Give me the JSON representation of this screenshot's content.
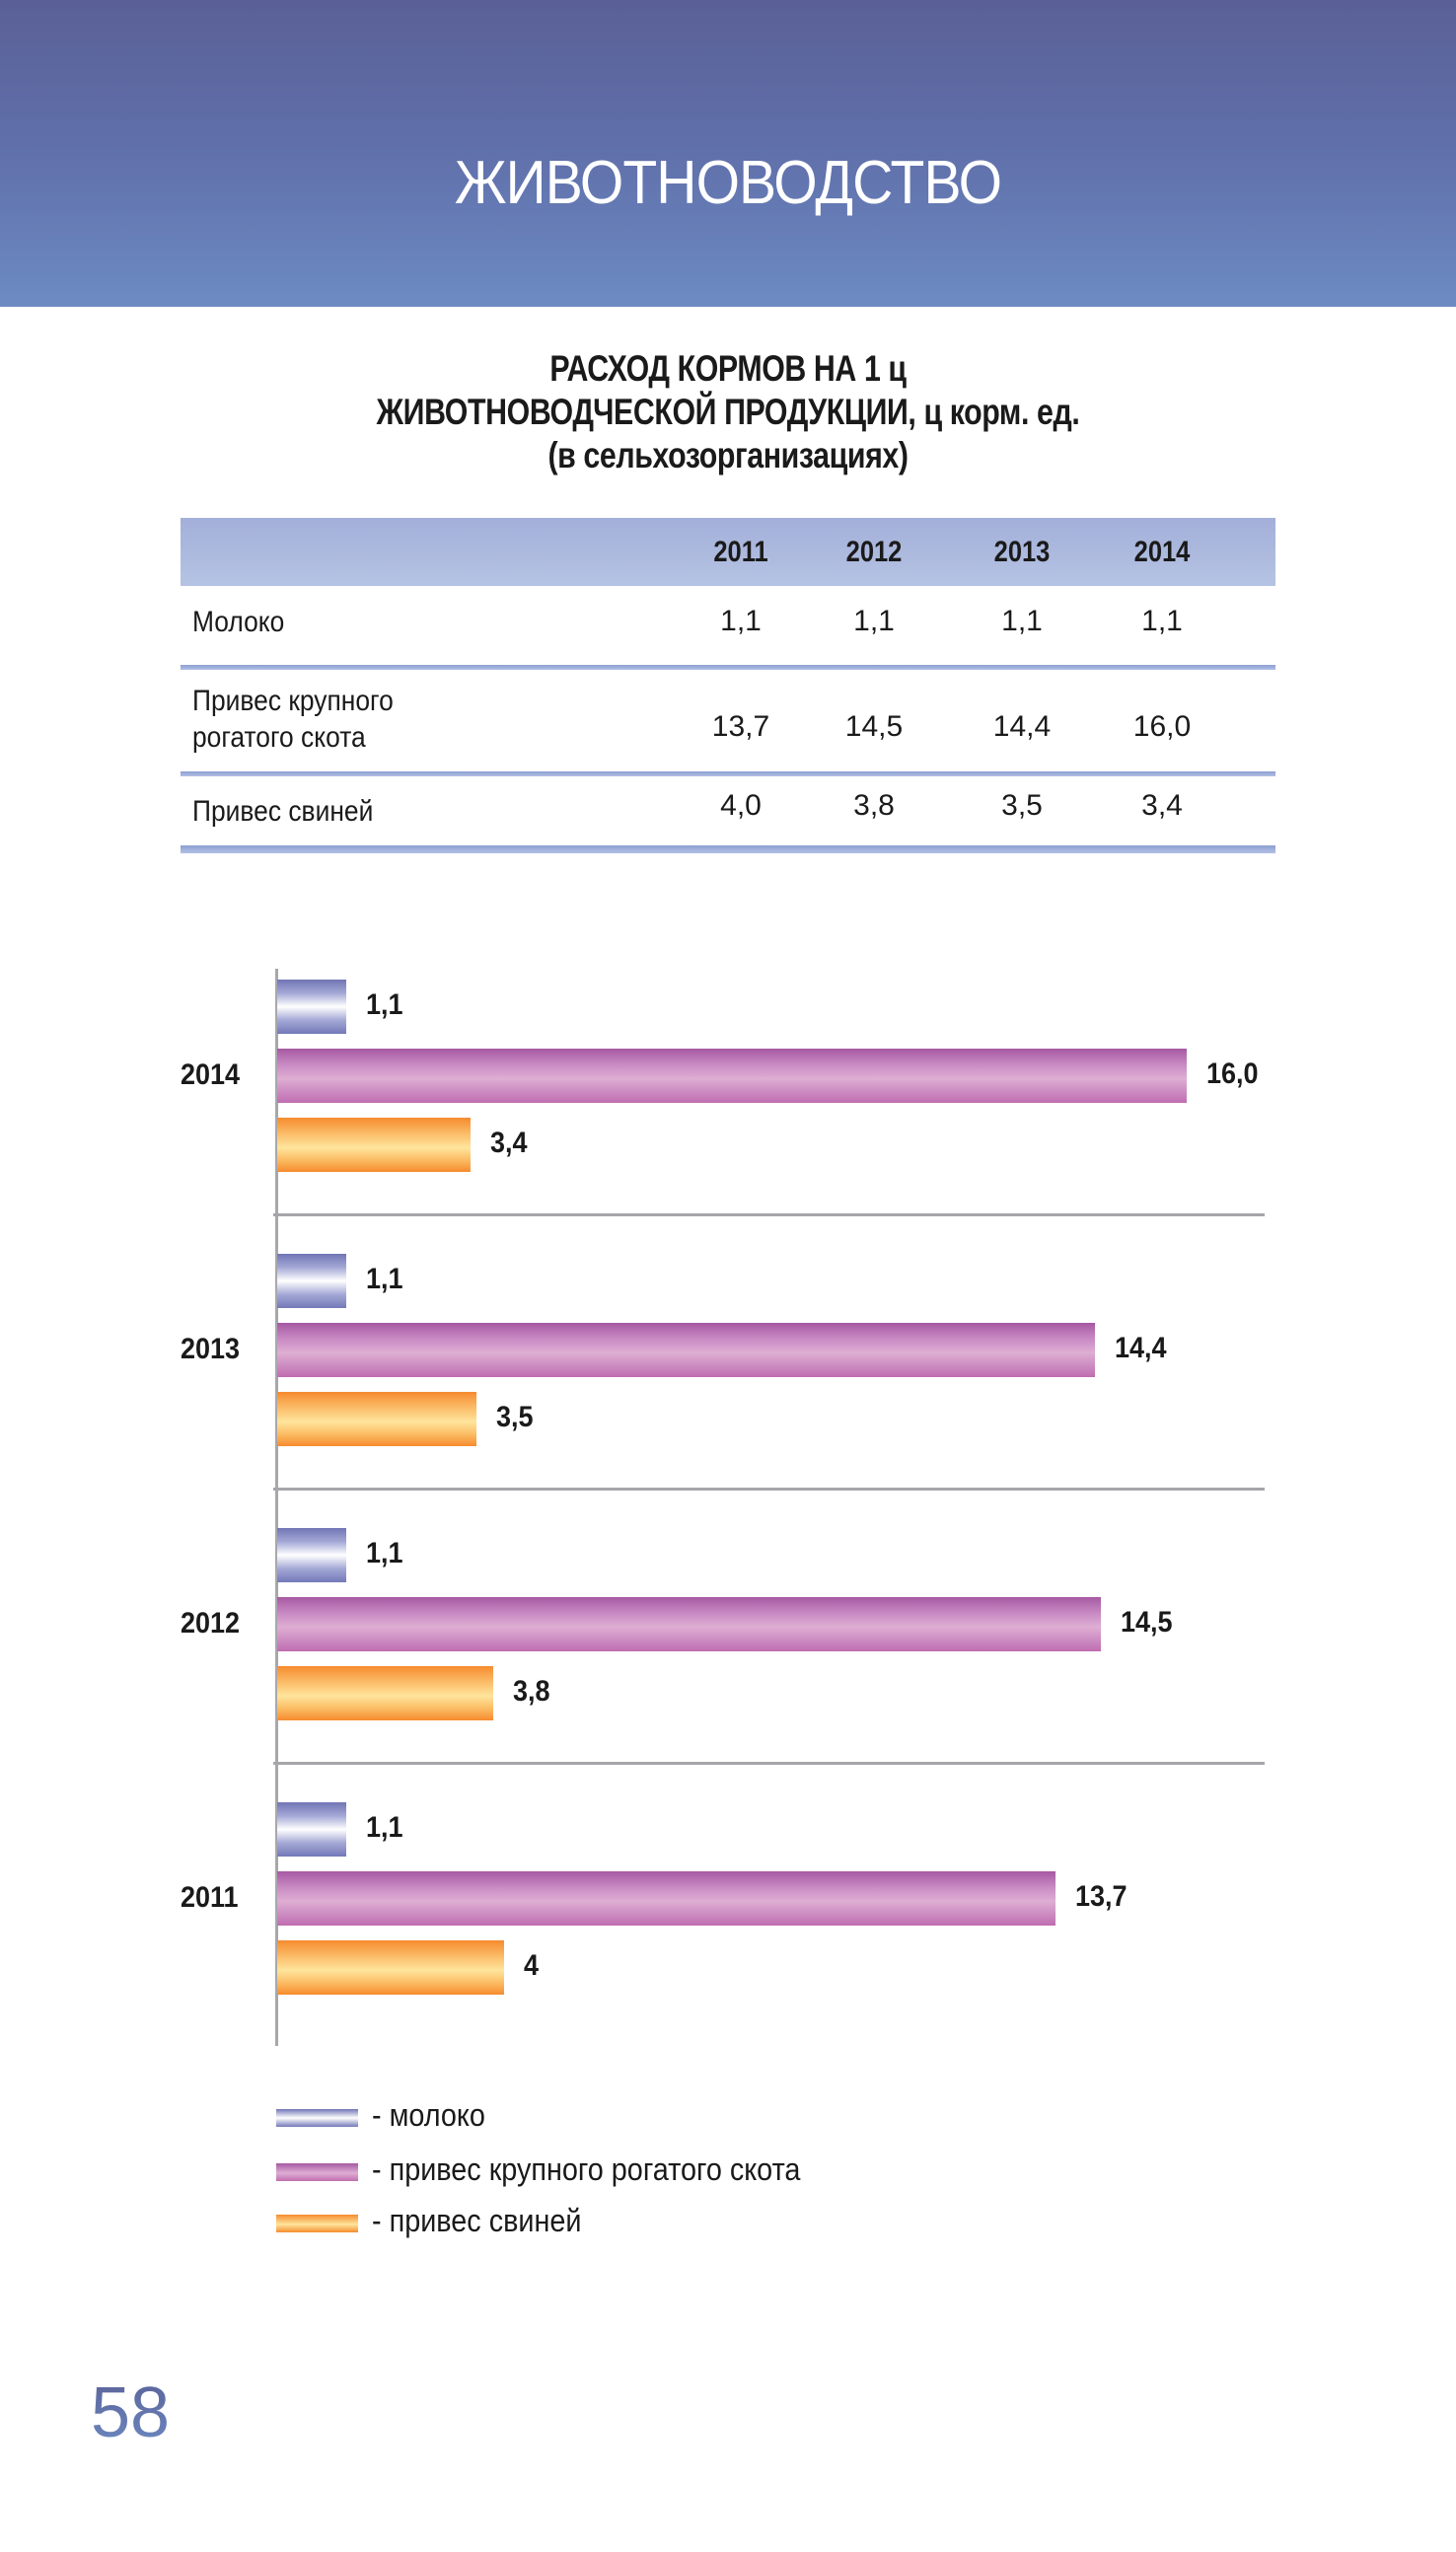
{
  "header": {
    "section_title": "ЖИВОТНОВОДСТВО"
  },
  "title": {
    "line1": "РАСХОД КОРМОВ  НА  1  ц",
    "line2": "ЖИВОТНОВОДЧЕСКОЙ ПРОДУКЦИИ, ц корм. ед.",
    "line3": "(в сельхозорганизациях)"
  },
  "table": {
    "columns": [
      "2011",
      "2012",
      "2013",
      "2014"
    ],
    "rows": [
      {
        "label": "Молоко",
        "values": [
          "1,1",
          "1,1",
          "1,1",
          "1,1"
        ]
      },
      {
        "label_line1": "Привес крупного",
        "label_line2": "рогатого скота",
        "values": [
          "13,7",
          "14,5",
          "14,4",
          "16,0"
        ]
      },
      {
        "label": "Привес свиней",
        "values": [
          "4,0",
          "3,8",
          "3,5",
          "3,4"
        ]
      }
    ]
  },
  "chart_data": {
    "type": "bar",
    "orientation": "horizontal",
    "title": "РАСХОД КОРМОВ НА 1 ц ЖИВОТНОВОДЧЕСКОЙ ПРОДУКЦИИ, ц корм. ед. (в сельхозорганизациях)",
    "categories": [
      "2014",
      "2013",
      "2012",
      "2011"
    ],
    "series": [
      {
        "name": "молоко",
        "color": "#7075b5",
        "values": [
          1.1,
          1.1,
          1.1,
          1.1
        ],
        "labels": [
          "1,1",
          "1,1",
          "1,1",
          "1,1"
        ]
      },
      {
        "name": "привес крупного рогатого скота",
        "color": "#a659a2",
        "values": [
          16.0,
          14.4,
          14.5,
          13.7
        ],
        "labels": [
          "16,0",
          "14,4",
          "14,5",
          "13,7"
        ]
      },
      {
        "name": "привес свиней",
        "color": "#f68b2e",
        "values": [
          3.4,
          3.5,
          3.8,
          4.0
        ],
        "labels": [
          "3,4",
          "3,5",
          "3,8",
          "4"
        ]
      }
    ],
    "xlabel": "",
    "ylabel": "",
    "xlim": [
      0,
      16
    ],
    "grid": false,
    "legend_position": "bottom-left",
    "legend": [
      "- молоко",
      "- привес крупного рогатого скота",
      "- привес свиней"
    ]
  },
  "footer": {
    "page_number": "58"
  }
}
